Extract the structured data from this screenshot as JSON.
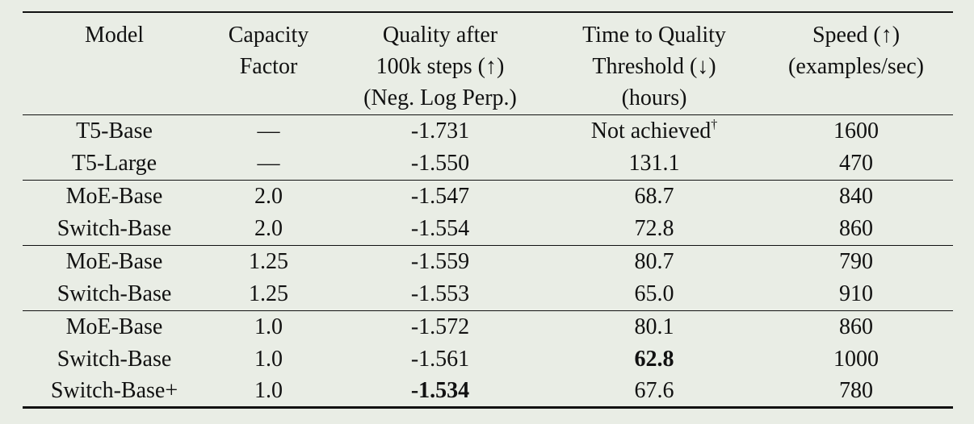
{
  "table": {
    "headers": [
      [
        "Model"
      ],
      [
        "Capacity",
        "Factor"
      ],
      [
        "Quality after",
        "100k steps (↑)",
        "(Neg. Log Perp.)"
      ],
      [
        "Time to Quality",
        "Threshold (↓)",
        "(hours)"
      ],
      [
        "Speed (↑)",
        "(examples/sec)"
      ]
    ],
    "groups": [
      [
        [
          "T5-Base",
          "—",
          "-1.731",
          {
            "text": "Not achieved",
            "sup": "†"
          },
          "1600"
        ],
        [
          "T5-Large",
          "—",
          "-1.550",
          "131.1",
          "470"
        ]
      ],
      [
        [
          "MoE-Base",
          "2.0",
          "-1.547",
          "68.7",
          "840"
        ],
        [
          "Switch-Base",
          "2.0",
          "-1.554",
          "72.8",
          "860"
        ]
      ],
      [
        [
          "MoE-Base",
          "1.25",
          "-1.559",
          "80.7",
          "790"
        ],
        [
          "Switch-Base",
          "1.25",
          "-1.553",
          "65.0",
          "910"
        ]
      ],
      [
        [
          "MoE-Base",
          "1.0",
          "-1.572",
          "80.1",
          "860"
        ],
        [
          "Switch-Base",
          "1.0",
          "-1.561",
          {
            "text": "62.8",
            "bold": true
          },
          "1000"
        ],
        [
          "Switch-Base+",
          "1.0",
          {
            "text": "-1.534",
            "bold": true
          },
          "67.6",
          "780"
        ]
      ]
    ]
  }
}
